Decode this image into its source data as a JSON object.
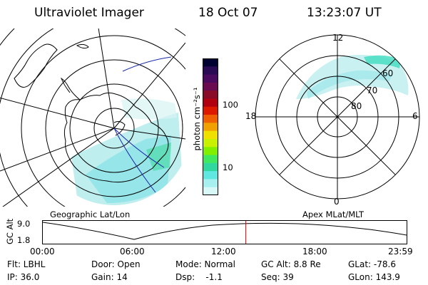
{
  "header": {
    "title": "Ultraviolet Imager",
    "date": "18 Oct 07",
    "time": "13:23:07 UT"
  },
  "left_panel": {
    "label": "Geographic Lat/Lon"
  },
  "right_panel": {
    "label": "Apex MLat/MLT",
    "mlt_labels": {
      "top": "12",
      "left": "18",
      "right": "6",
      "bottom": "0"
    },
    "lat_labels": [
      "60",
      "70",
      "80"
    ]
  },
  "colorbar": {
    "unit": "photon cm⁻²s⁻¹",
    "ticks": [
      "100",
      "10"
    ],
    "colors": [
      "#000033",
      "#2a0a55",
      "#4a0a60",
      "#6a0a50",
      "#8a0a2a",
      "#b00010",
      "#dd1a00",
      "#f06000",
      "#f0a000",
      "#f0e000",
      "#c8f000",
      "#80f000",
      "#40e860",
      "#30d8a0",
      "#60e8e0",
      "#a8f0f0",
      "#d8f8f8"
    ]
  },
  "timeline": {
    "ylabel": "GC Alt",
    "ymax": "9.0",
    "ymin": "1.8",
    "ticks": [
      "00:00",
      "06:00",
      "12:00",
      "18:00",
      "23:59"
    ],
    "current_time": "13:23",
    "marker_color": "#dd0000"
  },
  "footer": {
    "row1": [
      "Flt: LBHL",
      "Door: Open",
      "Mode: Normal",
      "GC Alt: 8.8 Re",
      "GLat: -78.6"
    ],
    "row2": [
      "IP: 36.0",
      "Gain: 14",
      "Dsp:    -1.1",
      "Seq: 39",
      "GLon: 143.9"
    ]
  }
}
